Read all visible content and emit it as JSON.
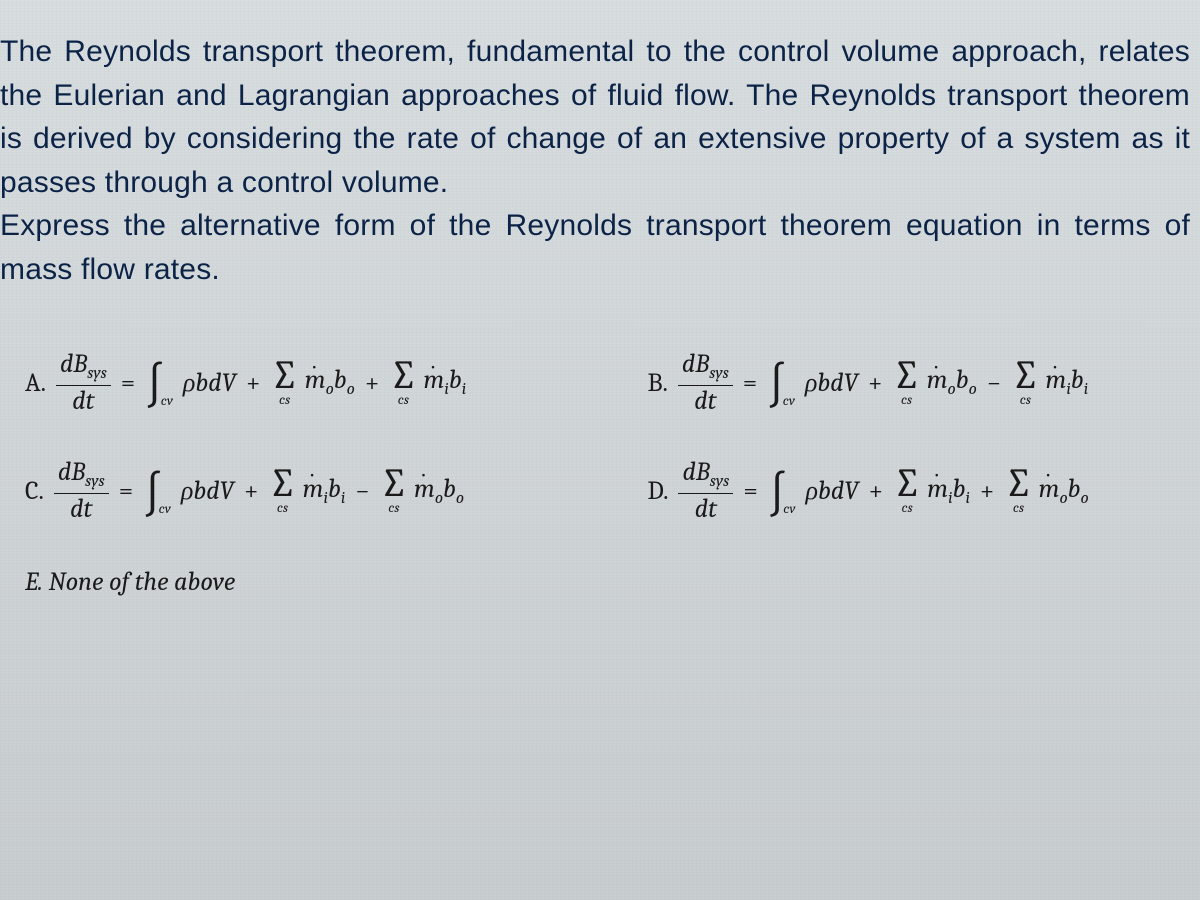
{
  "colors": {
    "background_top": "#d8dde0",
    "background_bottom": "#c8cdd0",
    "prompt_text": "#0b2347",
    "math_text": "#1a1a1a"
  },
  "typography": {
    "prompt_font": "Segoe UI / sans-serif",
    "prompt_size_pt": 22,
    "math_font": "Cambria / serif italic",
    "math_size_pt": 20
  },
  "prompt": {
    "p1": "The Reynolds transport theorem, fundamental to the control volume approach, relates the Eulerian and Lagrangian approaches of fluid flow. The Reynolds transport theorem is derived by considering the rate of change of an extensive property of a system as it passes through a control volume.",
    "p2": "Express the alternative form of the Reynolds transport theorem equation in terms of mass flow rates."
  },
  "lhs": {
    "num": "dB",
    "numsub": "sys",
    "den": "dt"
  },
  "integral": {
    "body": "ρbdV",
    "sub": "cv"
  },
  "sum_sub": "cs",
  "terms": {
    "mo_bo": {
      "m": "m",
      "sub": "o",
      "b": "b",
      "bsub": "o"
    },
    "mi_bi": {
      "m": "m",
      "sub": "i",
      "b": "b",
      "bsub": "i"
    }
  },
  "options": {
    "A": {
      "label": "A.",
      "sign1": "+",
      "first": "mo_bo",
      "sign2": "+",
      "second": "mi_bi"
    },
    "B": {
      "label": "B.",
      "sign1": "+",
      "first": "mo_bo",
      "sign2": "−",
      "second": "mi_bi"
    },
    "C": {
      "label": "C.",
      "sign1": "+",
      "first": "mi_bi",
      "sign2": "−",
      "second": "mo_bo"
    },
    "D": {
      "label": "D.",
      "sign1": "+",
      "first": "mi_bi",
      "sign2": "+",
      "second": "mo_bo"
    },
    "E": {
      "label": "E.",
      "text": "None of the above"
    }
  }
}
